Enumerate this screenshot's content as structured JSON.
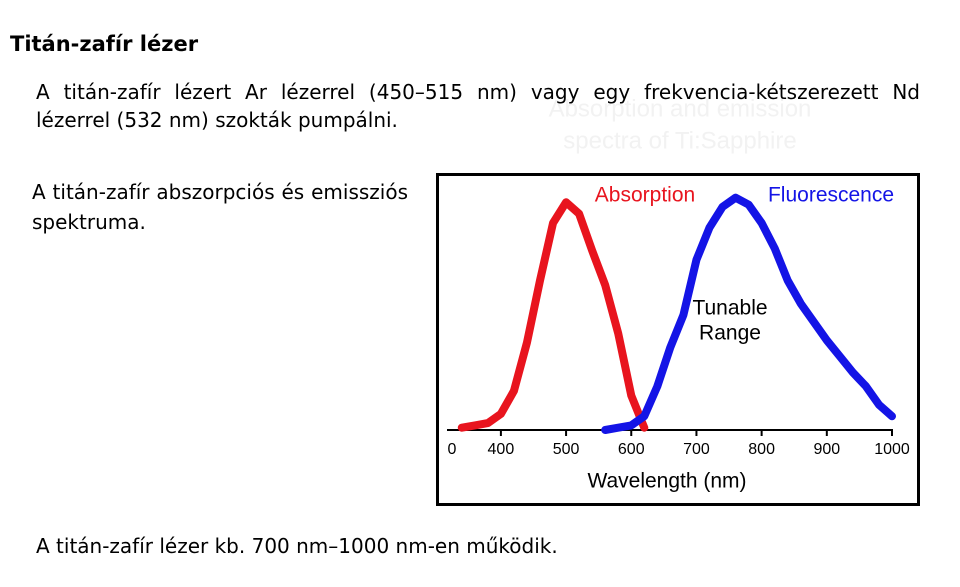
{
  "header": {
    "title": "Titán-zafír lézer"
  },
  "paragraphs": [
    "A titán-zafír lézert Ar lézerrel (450–515 nm) vagy egy frekvencia-kétszerezett Nd lézerrel (532 nm) szokták pumpálni.",
    "A titán-zafír abszorpciós és emissziós spektruma.",
    "A titán-zafír lézer kb. 700 nm–1000 nm-en működik."
  ],
  "chart_data": {
    "type": "line",
    "ghost_title": [
      "Absorption and emission",
      "spectra of Ti:Sapphire"
    ],
    "xlabel": "Wavelength (nm)",
    "x_origin_label": "0",
    "annotations": [
      "Tunable",
      "Range"
    ],
    "x": [
      340,
      360,
      380,
      400,
      420,
      440,
      460,
      480,
      500,
      520,
      540,
      560,
      580,
      600,
      620,
      640,
      660,
      680,
      700,
      720,
      740,
      760,
      780,
      800,
      820,
      840,
      860,
      880,
      900,
      920,
      940,
      960,
      980,
      1000
    ],
    "series": [
      {
        "name": "Absorption",
        "color": "#e8141e",
        "values": [
          0.01,
          0.02,
          0.03,
          0.07,
          0.17,
          0.38,
          0.65,
          0.9,
          0.99,
          0.94,
          0.78,
          0.63,
          0.42,
          0.15,
          0.01,
          null,
          null,
          null,
          null,
          null,
          null,
          null,
          null,
          null,
          null,
          null,
          null,
          null,
          null,
          null,
          null,
          null,
          null,
          null
        ]
      },
      {
        "name": "Fluorescence",
        "color": "#1414e6",
        "values": [
          null,
          null,
          null,
          null,
          null,
          null,
          null,
          null,
          null,
          null,
          null,
          0,
          0.01,
          0.02,
          0.06,
          0.19,
          0.36,
          0.5,
          0.74,
          0.88,
          0.97,
          1.01,
          0.98,
          0.9,
          0.79,
          0.65,
          0.55,
          0.47,
          0.39,
          0.32,
          0.25,
          0.19,
          0.11,
          0.06
        ]
      }
    ],
    "xlim": [
      325,
      1000
    ],
    "xticks": [
      400,
      500,
      600,
      700,
      800,
      900,
      1000
    ],
    "ylim": [
      0,
      1.1
    ]
  }
}
